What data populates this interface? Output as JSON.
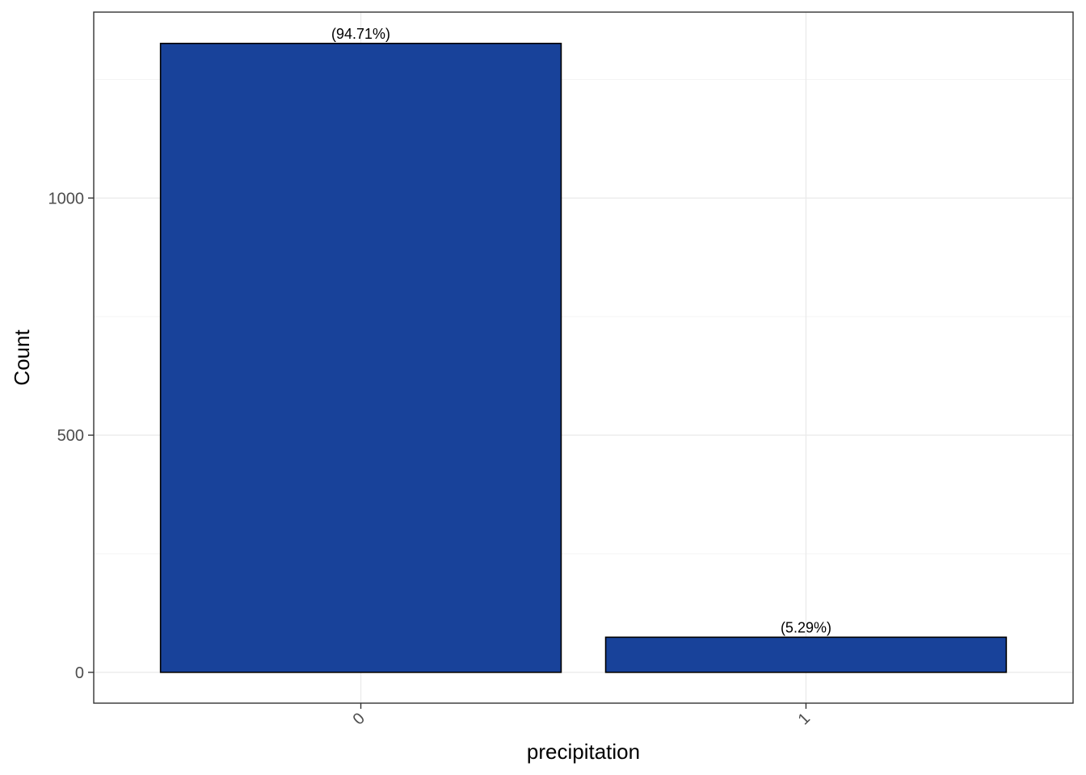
{
  "chart_data": {
    "type": "bar",
    "categories": [
      "0",
      "1"
    ],
    "values": [
      1326,
      74
    ],
    "data_labels": [
      "(94.71%)",
      "(5.29%)"
    ],
    "title": "",
    "xlabel": "precipitation",
    "ylabel": "Count",
    "ylim": [
      -65,
      1392
    ],
    "yticks": [
      0,
      500,
      1000
    ],
    "y_minor_ticks": [
      250,
      750,
      1250
    ],
    "bar_color": "#18429A",
    "bar_outline": "#000000",
    "grid": true,
    "legend": "none"
  }
}
